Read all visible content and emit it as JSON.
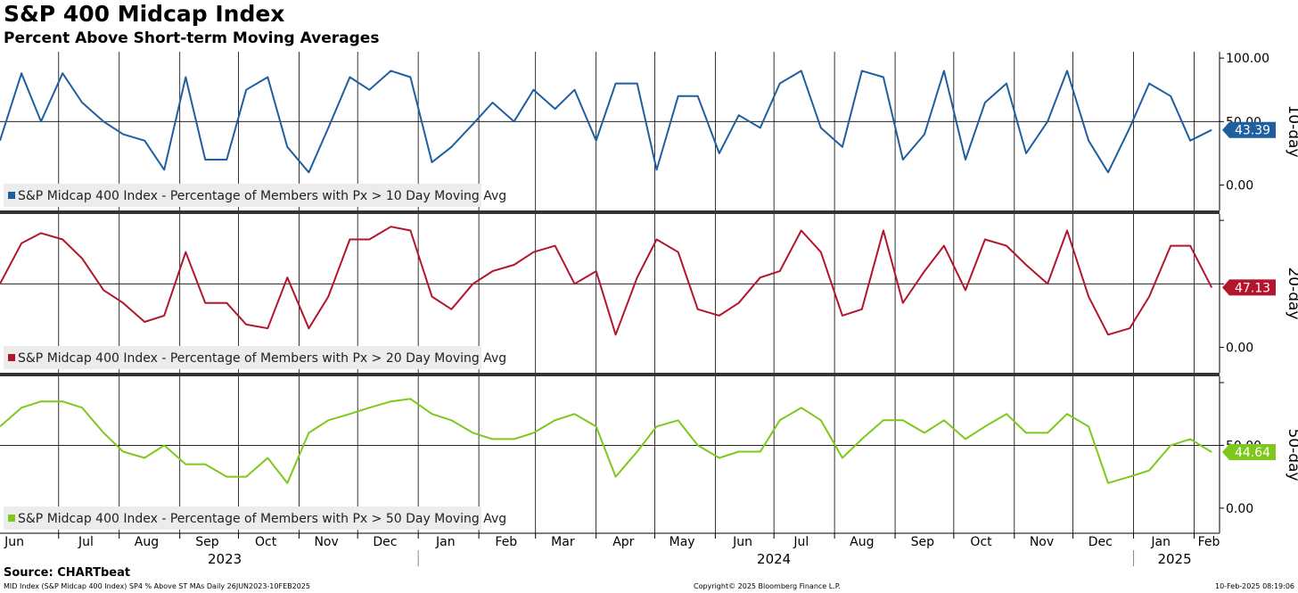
{
  "title": "S&P 400 Midcap Index",
  "subtitle": "Percent Above Short-term Moving Averages",
  "source": "Source: CHARTbeat",
  "footer": {
    "left": "MID Index (S&P Midcap 400 Index) SP4 % Above ST MAs  Daily 26JUN2023-10FEB2025",
    "center": "Copyright© 2025 Bloomberg Finance L.P.",
    "right": "10-Feb-2025 08:19:06"
  },
  "colors": {
    "ten_day": "#1f5fa0",
    "twenty_day": "#b3152c",
    "fifty_day": "#7ec81c"
  },
  "chart_data": {
    "type": "line",
    "x_range": [
      "2023-06-01",
      "2025-02-14"
    ],
    "months": [
      "Jun",
      "Jul",
      "Aug",
      "Sep",
      "Oct",
      "Nov",
      "Dec",
      "Jan",
      "Feb",
      "Mar",
      "Apr",
      "May",
      "Jun",
      "Jul",
      "Aug",
      "Sep",
      "Oct",
      "Nov",
      "Dec",
      "Jan",
      "Feb"
    ],
    "years": [
      "2023",
      "2024",
      "2025"
    ],
    "panels": [
      {
        "axis_label": "10-day",
        "legend": "S&P Midcap 400 Index - Percentage of Members with Px > 10 Day Moving Avg",
        "last_value": "43.39",
        "color_key": "ten_day",
        "ylim": [
          -20,
          105
        ],
        "yticks": [
          "100.00",
          "50.00",
          "0.00"
        ],
        "x": [
          "2023-06-01",
          "2023-06-12",
          "2023-06-22",
          "2023-07-03",
          "2023-07-13",
          "2023-07-24",
          "2023-08-03",
          "2023-08-14",
          "2023-08-24",
          "2023-09-04",
          "2023-09-14",
          "2023-09-25",
          "2023-10-05",
          "2023-10-16",
          "2023-10-26",
          "2023-11-06",
          "2023-11-16",
          "2023-11-27",
          "2023-12-07",
          "2023-12-18",
          "2023-12-28",
          "2024-01-08",
          "2024-01-18",
          "2024-01-29",
          "2024-02-08",
          "2024-02-19",
          "2024-02-29",
          "2024-03-11",
          "2024-03-21",
          "2024-04-01",
          "2024-04-11",
          "2024-04-22",
          "2024-05-02",
          "2024-05-13",
          "2024-05-23",
          "2024-06-03",
          "2024-06-13",
          "2024-06-24",
          "2024-07-04",
          "2024-07-15",
          "2024-07-25",
          "2024-08-05",
          "2024-08-15",
          "2024-08-26",
          "2024-09-05",
          "2024-09-16",
          "2024-09-26",
          "2024-10-07",
          "2024-10-17",
          "2024-10-28",
          "2024-11-07",
          "2024-11-18",
          "2024-11-28",
          "2024-12-09",
          "2024-12-19",
          "2024-12-30",
          "2025-01-09",
          "2025-01-20",
          "2025-01-30",
          "2025-02-10"
        ],
        "values": [
          35,
          88,
          50,
          88,
          65,
          50,
          40,
          35,
          12,
          85,
          20,
          20,
          75,
          85,
          30,
          10,
          45,
          85,
          75,
          90,
          85,
          18,
          30,
          48,
          65,
          50,
          75,
          60,
          75,
          35,
          80,
          80,
          12,
          70,
          70,
          25,
          55,
          45,
          80,
          90,
          45,
          30,
          90,
          85,
          20,
          40,
          90,
          20,
          65,
          80,
          25,
          50,
          90,
          35,
          10,
          45,
          80,
          70,
          35,
          43.39
        ]
      },
      {
        "axis_label": "20-day",
        "legend": "S&P Midcap 400 Index - Percentage of Members with Px > 20 Day Moving Avg",
        "last_value": "47.13",
        "color_key": "twenty_day",
        "ylim": [
          -20,
          105
        ],
        "yticks": [
          "0.00"
        ],
        "x": [
          "2023-06-01",
          "2023-06-12",
          "2023-06-22",
          "2023-07-03",
          "2023-07-13",
          "2023-07-24",
          "2023-08-03",
          "2023-08-14",
          "2023-08-24",
          "2023-09-04",
          "2023-09-14",
          "2023-09-25",
          "2023-10-05",
          "2023-10-16",
          "2023-10-26",
          "2023-11-06",
          "2023-11-16",
          "2023-11-27",
          "2023-12-07",
          "2023-12-18",
          "2023-12-28",
          "2024-01-08",
          "2024-01-18",
          "2024-01-29",
          "2024-02-08",
          "2024-02-19",
          "2024-02-29",
          "2024-03-11",
          "2024-03-21",
          "2024-04-01",
          "2024-04-11",
          "2024-04-22",
          "2024-05-02",
          "2024-05-13",
          "2024-05-23",
          "2024-06-03",
          "2024-06-13",
          "2024-06-24",
          "2024-07-04",
          "2024-07-15",
          "2024-07-25",
          "2024-08-05",
          "2024-08-15",
          "2024-08-26",
          "2024-09-05",
          "2024-09-16",
          "2024-09-26",
          "2024-10-07",
          "2024-10-17",
          "2024-10-28",
          "2024-11-07",
          "2024-11-18",
          "2024-11-28",
          "2024-12-09",
          "2024-12-19",
          "2024-12-30",
          "2025-01-09",
          "2025-01-20",
          "2025-01-30",
          "2025-02-10"
        ],
        "values": [
          50,
          82,
          90,
          85,
          70,
          45,
          35,
          20,
          25,
          75,
          35,
          35,
          18,
          15,
          55,
          15,
          40,
          85,
          85,
          95,
          92,
          40,
          30,
          50,
          60,
          65,
          75,
          80,
          50,
          60,
          10,
          55,
          85,
          75,
          30,
          25,
          35,
          55,
          60,
          92,
          75,
          25,
          30,
          92,
          35,
          60,
          80,
          45,
          85,
          80,
          65,
          50,
          92,
          40,
          10,
          15,
          40,
          80,
          80,
          47.13
        ]
      },
      {
        "axis_label": "50-day",
        "legend": "S&P Midcap 400 Index - Percentage of Members with Px > 50 Day Moving Avg",
        "last_value": "44.64",
        "color_key": "fifty_day",
        "ylim": [
          -20,
          105
        ],
        "yticks": [
          "50.00",
          "0.00"
        ],
        "x": [
          "2023-06-01",
          "2023-06-12",
          "2023-06-22",
          "2023-07-03",
          "2023-07-13",
          "2023-07-24",
          "2023-08-03",
          "2023-08-14",
          "2023-08-24",
          "2023-09-04",
          "2023-09-14",
          "2023-09-25",
          "2023-10-05",
          "2023-10-16",
          "2023-10-26",
          "2023-11-06",
          "2023-11-16",
          "2023-11-27",
          "2023-12-07",
          "2023-12-18",
          "2023-12-28",
          "2024-01-08",
          "2024-01-18",
          "2024-01-29",
          "2024-02-08",
          "2024-02-19",
          "2024-02-29",
          "2024-03-11",
          "2024-03-21",
          "2024-04-01",
          "2024-04-11",
          "2024-04-22",
          "2024-05-02",
          "2024-05-13",
          "2024-05-23",
          "2024-06-03",
          "2024-06-13",
          "2024-06-24",
          "2024-07-04",
          "2024-07-15",
          "2024-07-25",
          "2024-08-05",
          "2024-08-15",
          "2024-08-26",
          "2024-09-05",
          "2024-09-16",
          "2024-09-26",
          "2024-10-07",
          "2024-10-17",
          "2024-10-28",
          "2024-11-07",
          "2024-11-18",
          "2024-11-28",
          "2024-12-09",
          "2024-12-19",
          "2024-12-30",
          "2025-01-09",
          "2025-01-20",
          "2025-01-30",
          "2025-02-10"
        ],
        "values": [
          65,
          80,
          85,
          85,
          80,
          60,
          45,
          40,
          50,
          35,
          35,
          25,
          25,
          40,
          20,
          60,
          70,
          75,
          80,
          85,
          87,
          75,
          70,
          60,
          55,
          55,
          60,
          70,
          75,
          65,
          25,
          45,
          65,
          70,
          50,
          40,
          45,
          45,
          70,
          80,
          70,
          40,
          55,
          70,
          70,
          60,
          70,
          55,
          65,
          75,
          60,
          60,
          75,
          65,
          20,
          25,
          30,
          50,
          55,
          44.64
        ]
      }
    ]
  }
}
